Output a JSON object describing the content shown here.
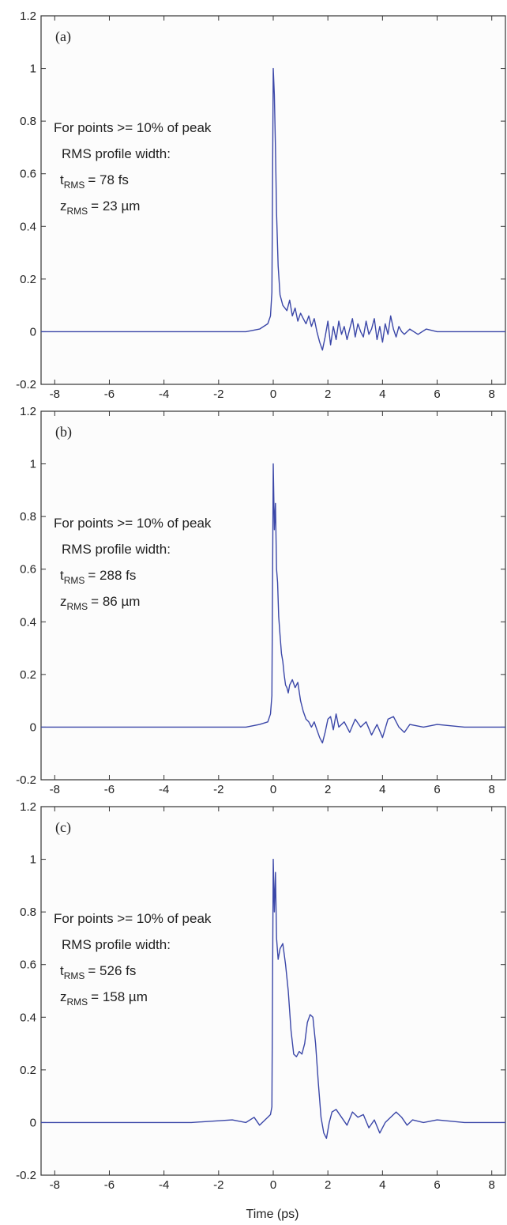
{
  "figure": {
    "xlabel": "Time (ps)",
    "colors": {
      "line": "#3b47a8",
      "axis": "#333333",
      "background": "#ffffff"
    }
  },
  "chart_data": [
    {
      "type": "line",
      "panel_label": "(a)",
      "xlim": [
        -8.5,
        8.5
      ],
      "ylim": [
        -0.2,
        1.2
      ],
      "x_ticks": [
        -8,
        -6,
        -4,
        -2,
        0,
        2,
        4,
        6,
        8
      ],
      "y_ticks": [
        -0.2,
        0,
        0.2,
        0.4,
        0.6,
        0.8,
        1,
        1.2
      ],
      "grid": false,
      "annotation": {
        "line1": "For points >= 10% of peak",
        "line2": "RMS profile width:",
        "t_symbol": "t",
        "t_sub": "RMS",
        "t_value": "= 78 fs",
        "z_symbol": "z",
        "z_sub": "RMS",
        "z_value": "= 23 µm"
      },
      "series": [
        {
          "x": [
            -8.5,
            -7,
            -5,
            -3,
            -1,
            -0.5,
            -0.2,
            -0.1,
            -0.05,
            0,
            0.04,
            0.08,
            0.12,
            0.18,
            0.25,
            0.35,
            0.5,
            0.6,
            0.7,
            0.8,
            0.9,
            1.0,
            1.1,
            1.2,
            1.3,
            1.4,
            1.5,
            1.6,
            1.7,
            1.8,
            1.9,
            2.0,
            2.1,
            2.2,
            2.3,
            2.4,
            2.5,
            2.6,
            2.7,
            2.8,
            2.9,
            3.0,
            3.1,
            3.2,
            3.3,
            3.4,
            3.5,
            3.6,
            3.7,
            3.8,
            3.9,
            4.0,
            4.1,
            4.2,
            4.3,
            4.4,
            4.5,
            4.6,
            4.7,
            4.8,
            5.0,
            5.3,
            5.6,
            6,
            7,
            8.5
          ],
          "y": [
            0,
            0,
            0,
            0,
            0,
            0.01,
            0.03,
            0.06,
            0.15,
            1.0,
            0.9,
            0.7,
            0.45,
            0.25,
            0.14,
            0.1,
            0.08,
            0.12,
            0.06,
            0.09,
            0.04,
            0.07,
            0.05,
            0.03,
            0.06,
            0.02,
            0.05,
            0.0,
            -0.04,
            -0.07,
            -0.02,
            0.04,
            -0.05,
            0.02,
            -0.03,
            0.04,
            -0.01,
            0.02,
            -0.03,
            0.01,
            0.05,
            -0.02,
            0.03,
            0.0,
            -0.02,
            0.04,
            -0.01,
            0.01,
            0.05,
            -0.03,
            0.02,
            -0.04,
            0.03,
            -0.01,
            0.06,
            0.01,
            -0.02,
            0.02,
            0.0,
            -0.01,
            0.01,
            -0.01,
            0.01,
            0,
            0,
            0
          ]
        }
      ]
    },
    {
      "type": "line",
      "panel_label": "(b)",
      "xlim": [
        -8.5,
        8.5
      ],
      "ylim": [
        -0.2,
        1.2
      ],
      "x_ticks": [
        -8,
        -6,
        -4,
        -2,
        0,
        2,
        4,
        6,
        8
      ],
      "y_ticks": [
        -0.2,
        0,
        0.2,
        0.4,
        0.6,
        0.8,
        1,
        1.2
      ],
      "grid": false,
      "annotation": {
        "line1": "For points >= 10% of peak",
        "line2": "RMS profile width:",
        "t_symbol": "t",
        "t_sub": "RMS",
        "t_value": "= 288 fs",
        "z_symbol": "z",
        "z_sub": "RMS",
        "z_value": "= 86 µm"
      },
      "series": [
        {
          "x": [
            -8.5,
            -7,
            -5,
            -3,
            -1,
            -0.5,
            -0.2,
            -0.1,
            -0.05,
            0,
            0.04,
            0.08,
            0.12,
            0.16,
            0.2,
            0.25,
            0.3,
            0.35,
            0.4,
            0.45,
            0.5,
            0.55,
            0.6,
            0.7,
            0.8,
            0.9,
            1.0,
            1.1,
            1.2,
            1.3,
            1.4,
            1.5,
            1.6,
            1.7,
            1.8,
            1.9,
            2.0,
            2.1,
            2.2,
            2.3,
            2.4,
            2.6,
            2.8,
            3.0,
            3.2,
            3.4,
            3.6,
            3.8,
            4.0,
            4.2,
            4.4,
            4.6,
            4.8,
            5.0,
            5.5,
            6,
            7,
            8.5
          ],
          "y": [
            0,
            0,
            0,
            0,
            0,
            0.01,
            0.02,
            0.05,
            0.12,
            1.0,
            0.75,
            0.85,
            0.6,
            0.55,
            0.42,
            0.35,
            0.28,
            0.25,
            0.2,
            0.16,
            0.15,
            0.13,
            0.16,
            0.18,
            0.15,
            0.17,
            0.1,
            0.06,
            0.03,
            0.02,
            0.0,
            0.02,
            -0.01,
            -0.04,
            -0.06,
            -0.02,
            0.03,
            0.04,
            -0.01,
            0.05,
            0.0,
            0.02,
            -0.02,
            0.03,
            0.0,
            0.02,
            -0.03,
            0.01,
            -0.04,
            0.03,
            0.04,
            0.0,
            -0.02,
            0.01,
            0.0,
            0.01,
            0,
            0
          ]
        }
      ]
    },
    {
      "type": "line",
      "panel_label": "(c)",
      "xlim": [
        -8.5,
        8.5
      ],
      "ylim": [
        -0.2,
        1.2
      ],
      "x_ticks": [
        -8,
        -6,
        -4,
        -2,
        0,
        2,
        4,
        6,
        8
      ],
      "y_ticks": [
        -0.2,
        0,
        0.2,
        0.4,
        0.6,
        0.8,
        1,
        1.2
      ],
      "grid": false,
      "annotation": {
        "line1": "For points >= 10% of peak",
        "line2": "RMS profile width:",
        "t_symbol": "t",
        "t_sub": "RMS",
        "t_value": "= 526 fs",
        "z_symbol": "z",
        "z_sub": "RMS",
        "z_value": "= 158 µm"
      },
      "series": [
        {
          "x": [
            -8.5,
            -7,
            -5,
            -3,
            -1.5,
            -1,
            -0.7,
            -0.5,
            -0.3,
            -0.2,
            -0.1,
            -0.05,
            0,
            0.04,
            0.08,
            0.12,
            0.18,
            0.25,
            0.35,
            0.45,
            0.55,
            0.65,
            0.75,
            0.85,
            0.95,
            1.05,
            1.15,
            1.25,
            1.35,
            1.45,
            1.55,
            1.65,
            1.75,
            1.85,
            1.95,
            2.05,
            2.15,
            2.3,
            2.5,
            2.7,
            2.9,
            3.1,
            3.3,
            3.5,
            3.7,
            3.9,
            4.1,
            4.3,
            4.5,
            4.7,
            4.9,
            5.1,
            5.5,
            6,
            7,
            8.5
          ],
          "y": [
            0,
            0,
            0,
            0,
            0.01,
            0.0,
            0.02,
            -0.01,
            0.01,
            0.02,
            0.03,
            0.06,
            1.0,
            0.8,
            0.95,
            0.7,
            0.62,
            0.66,
            0.68,
            0.6,
            0.5,
            0.35,
            0.26,
            0.25,
            0.27,
            0.26,
            0.3,
            0.38,
            0.41,
            0.4,
            0.3,
            0.15,
            0.02,
            -0.04,
            -0.06,
            0.0,
            0.04,
            0.05,
            0.02,
            -0.01,
            0.04,
            0.02,
            0.03,
            -0.02,
            0.01,
            -0.04,
            0.0,
            0.02,
            0.04,
            0.02,
            -0.01,
            0.01,
            0.0,
            0.01,
            0,
            0
          ]
        }
      ]
    }
  ]
}
